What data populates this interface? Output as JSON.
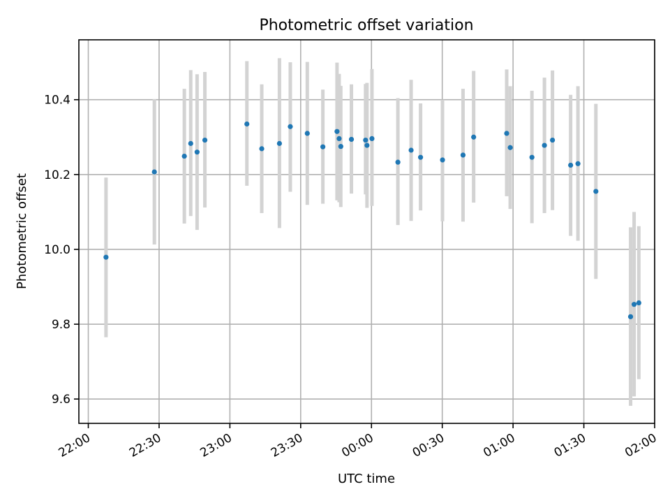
{
  "chart_data": {
    "type": "scatter",
    "title": "Photometric offset variation",
    "xlabel": "UTC time",
    "ylabel": "Photometric offset",
    "x_unit": "minutes after 22:00 UTC",
    "xlim": [
      -4,
      240
    ],
    "ylim": [
      9.535,
      10.56
    ],
    "x_ticks": [
      {
        "value": 0,
        "label": "22:00"
      },
      {
        "value": 30,
        "label": "22:30"
      },
      {
        "value": 60,
        "label": "23:00"
      },
      {
        "value": 90,
        "label": "23:30"
      },
      {
        "value": 120,
        "label": "00:00"
      },
      {
        "value": 150,
        "label": "00:30"
      },
      {
        "value": 180,
        "label": "01:00"
      },
      {
        "value": 210,
        "label": "01:30"
      },
      {
        "value": 240,
        "label": "02:00"
      }
    ],
    "y_ticks": [
      {
        "value": 9.6,
        "label": "9.6"
      },
      {
        "value": 9.8,
        "label": "9.8"
      },
      {
        "value": 10.0,
        "label": "10.0"
      },
      {
        "value": 10.2,
        "label": "10.2"
      },
      {
        "value": 10.4,
        "label": "10.4"
      }
    ],
    "grid": true,
    "point_color": "#1f77b4",
    "error_color": "#d3d3d3",
    "points": [
      {
        "x": 7.5,
        "y": 9.979,
        "low": 9.765,
        "high": 10.192
      },
      {
        "x": 28.0,
        "y": 10.207,
        "low": 10.013,
        "high": 10.401
      },
      {
        "x": 40.7,
        "y": 10.249,
        "low": 10.069,
        "high": 10.429
      },
      {
        "x": 43.4,
        "y": 10.283,
        "low": 10.089,
        "high": 10.479
      },
      {
        "x": 46.1,
        "y": 10.26,
        "low": 10.052,
        "high": 10.468
      },
      {
        "x": 49.4,
        "y": 10.292,
        "low": 10.112,
        "high": 10.474
      },
      {
        "x": 67.2,
        "y": 10.335,
        "low": 10.17,
        "high": 10.503
      },
      {
        "x": 73.5,
        "y": 10.269,
        "low": 10.097,
        "high": 10.441
      },
      {
        "x": 81.0,
        "y": 10.283,
        "low": 10.057,
        "high": 10.511
      },
      {
        "x": 85.6,
        "y": 10.328,
        "low": 10.154,
        "high": 10.5
      },
      {
        "x": 92.8,
        "y": 10.31,
        "low": 10.119,
        "high": 10.501
      },
      {
        "x": 99.4,
        "y": 10.274,
        "low": 10.122,
        "high": 10.427
      },
      {
        "x": 105.4,
        "y": 10.315,
        "low": 10.131,
        "high": 10.499
      },
      {
        "x": 106.3,
        "y": 10.296,
        "low": 10.126,
        "high": 10.469
      },
      {
        "x": 107.0,
        "y": 10.275,
        "low": 10.113,
        "high": 10.437
      },
      {
        "x": 111.5,
        "y": 10.294,
        "low": 10.149,
        "high": 10.441
      },
      {
        "x": 117.5,
        "y": 10.292,
        "low": 10.147,
        "high": 10.442
      },
      {
        "x": 118.1,
        "y": 10.278,
        "low": 10.111,
        "high": 10.445
      },
      {
        "x": 120.2,
        "y": 10.296,
        "low": 10.116,
        "high": 10.482
      },
      {
        "x": 131.2,
        "y": 10.233,
        "low": 10.065,
        "high": 10.404
      },
      {
        "x": 136.8,
        "y": 10.265,
        "low": 10.076,
        "high": 10.453
      },
      {
        "x": 140.8,
        "y": 10.246,
        "low": 10.104,
        "high": 10.39
      },
      {
        "x": 150.1,
        "y": 10.239,
        "low": 10.075,
        "high": 10.4
      },
      {
        "x": 158.8,
        "y": 10.252,
        "low": 10.074,
        "high": 10.429
      },
      {
        "x": 163.3,
        "y": 10.3,
        "low": 10.125,
        "high": 10.477
      },
      {
        "x": 177.3,
        "y": 10.31,
        "low": 10.142,
        "high": 10.481
      },
      {
        "x": 178.8,
        "y": 10.272,
        "low": 10.108,
        "high": 10.436
      },
      {
        "x": 188.0,
        "y": 10.246,
        "low": 10.07,
        "high": 10.424
      },
      {
        "x": 193.3,
        "y": 10.278,
        "low": 10.097,
        "high": 10.459
      },
      {
        "x": 196.7,
        "y": 10.292,
        "low": 10.105,
        "high": 10.478
      },
      {
        "x": 204.4,
        "y": 10.225,
        "low": 10.036,
        "high": 10.413
      },
      {
        "x": 207.5,
        "y": 10.229,
        "low": 10.023,
        "high": 10.436
      },
      {
        "x": 215.1,
        "y": 10.155,
        "low": 9.921,
        "high": 10.389
      },
      {
        "x": 229.8,
        "y": 9.82,
        "low": 9.582,
        "high": 10.059
      },
      {
        "x": 231.3,
        "y": 9.853,
        "low": 9.607,
        "high": 10.1
      },
      {
        "x": 233.3,
        "y": 9.857,
        "low": 9.653,
        "high": 10.062
      }
    ]
  }
}
